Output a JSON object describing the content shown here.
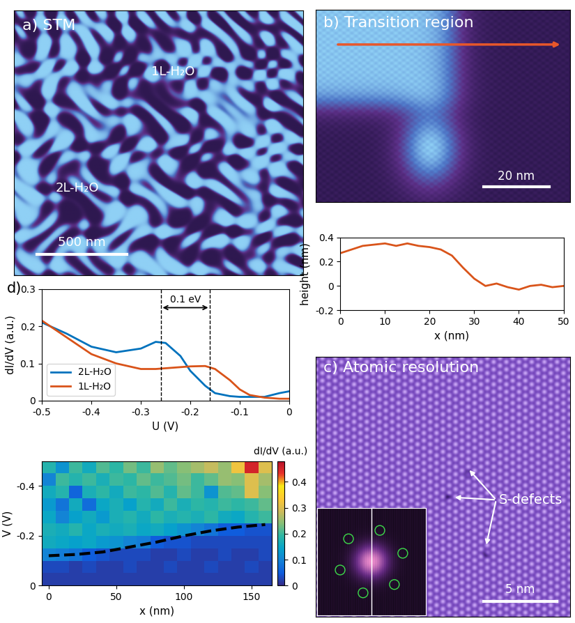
{
  "chart_data": [
    {
      "type": "image",
      "title": "a) STM",
      "labels": [
        "1L-H₂O",
        "2L-H₂O"
      ],
      "scale_bar": "500 nm"
    },
    {
      "type": "image",
      "title": "b) Transition region",
      "scale_bar": "20 nm"
    },
    {
      "type": "line",
      "xlabel": "x (nm)",
      "ylabel": "height (nm)",
      "x": [
        0,
        2.5,
        5,
        7.5,
        10,
        12.5,
        15,
        17.5,
        20,
        22.5,
        25,
        27.5,
        30,
        32.5,
        35,
        37.5,
        40,
        42.5,
        45,
        47.5,
        50
      ],
      "series": [
        {
          "color": "#d9541a",
          "values": [
            0.27,
            0.3,
            0.33,
            0.34,
            0.35,
            0.33,
            0.35,
            0.33,
            0.32,
            0.3,
            0.25,
            0.15,
            0.06,
            0.0,
            0.02,
            -0.01,
            -0.03,
            0.0,
            0.01,
            -0.01,
            0.0
          ]
        }
      ],
      "xlim": [
        0,
        50
      ],
      "xticks": [
        0,
        10,
        20,
        30,
        40,
        50
      ],
      "ylim": [
        -0.2,
        0.4
      ],
      "yticks": [
        -0.2,
        0,
        0.2,
        0.4
      ]
    },
    {
      "type": "image",
      "title": "c) Atomic resolution",
      "labels": [
        "S-defects"
      ],
      "scale_bar": "5 nm"
    },
    {
      "type": "line",
      "title": "d)",
      "xlabel": "U (V)",
      "ylabel": "dI/dV (a.u.)",
      "x": [
        -0.5,
        -0.45,
        -0.4,
        -0.35,
        -0.3,
        -0.27,
        -0.25,
        -0.22,
        -0.2,
        -0.17,
        -0.15,
        -0.12,
        -0.1,
        -0.08,
        -0.05,
        -0.02,
        0
      ],
      "series": [
        {
          "name": "2L-H₂O",
          "color": "#0072bd",
          "values": [
            0.21,
            0.18,
            0.145,
            0.13,
            0.14,
            0.158,
            0.155,
            0.12,
            0.08,
            0.04,
            0.02,
            0.012,
            0.01,
            0.01,
            0.01,
            0.02,
            0.025
          ]
        },
        {
          "name": "1L-H₂O",
          "color": "#d95319",
          "values": [
            0.215,
            0.17,
            0.125,
            0.1,
            0.085,
            0.085,
            0.087,
            0.09,
            0.092,
            0.093,
            0.085,
            0.055,
            0.03,
            0.015,
            0.008,
            0.005,
            0.005
          ]
        }
      ],
      "annotation": {
        "text": "0.1 eV",
        "x": [
          -0.26,
          -0.16
        ],
        "y": 0.25
      },
      "xlim": [
        -0.5,
        0
      ],
      "xticks": [
        -0.5,
        -0.4,
        -0.3,
        -0.2,
        -0.1,
        0
      ],
      "ylim": [
        0,
        0.3
      ],
      "yticks": [
        0,
        0.1,
        0.2,
        0.3
      ],
      "legend": "lower left"
    },
    {
      "type": "heatmap",
      "xlabel": "x (nm)",
      "ylabel": "V (V)",
      "colorbar_label": "dI/dV (a.u.)",
      "x": [
        -5,
        5,
        15,
        25,
        35,
        45,
        55,
        65,
        75,
        85,
        95,
        105,
        115,
        125,
        135,
        145,
        155,
        165
      ],
      "y": [
        0,
        -0.05,
        -0.1,
        -0.15,
        -0.2,
        -0.25,
        -0.3,
        -0.35,
        -0.4,
        -0.45,
        -0.5
      ],
      "cells": [
        [
          0.02,
          0.02,
          0.02,
          0.02,
          0.02,
          0.02,
          0.02,
          0.02,
          0.02,
          0.02,
          0.02,
          0.02,
          0.02,
          0.02,
          0.02,
          0.02,
          0.02
        ],
        [
          0.03,
          0.03,
          0.02,
          0.03,
          0.02,
          0.02,
          0.03,
          0.02,
          0.02,
          0.03,
          0.02,
          0.02,
          0.03,
          0.02,
          0.02,
          0.03,
          0.02
        ],
        [
          0.1,
          0.09,
          0.08,
          0.05,
          0.04,
          0.03,
          0.03,
          0.03,
          0.02,
          0.02,
          0.03,
          0.02,
          0.02,
          0.03,
          0.02,
          0.02,
          0.03
        ],
        [
          0.16,
          0.15,
          0.14,
          0.15,
          0.13,
          0.12,
          0.1,
          0.09,
          0.05,
          0.04,
          0.04,
          0.03,
          0.03,
          0.03,
          0.03,
          0.03,
          0.03
        ],
        [
          0.17,
          0.16,
          0.18,
          0.15,
          0.17,
          0.16,
          0.17,
          0.15,
          0.16,
          0.14,
          0.12,
          0.1,
          0.08,
          0.05,
          0.05,
          0.04,
          0.04
        ],
        [
          0.15,
          0.1,
          0.14,
          0.16,
          0.13,
          0.17,
          0.18,
          0.16,
          0.19,
          0.17,
          0.18,
          0.17,
          0.19,
          0.16,
          0.15,
          0.18,
          0.2
        ],
        [
          0.13,
          0.08,
          0.16,
          0.07,
          0.15,
          0.17,
          0.14,
          0.18,
          0.16,
          0.2,
          0.17,
          0.19,
          0.18,
          0.2,
          0.19,
          0.2,
          0.22
        ],
        [
          0.16,
          0.18,
          0.06,
          0.17,
          0.19,
          0.16,
          0.2,
          0.19,
          0.21,
          0.18,
          0.22,
          0.2,
          0.12,
          0.21,
          0.22,
          0.3,
          0.24
        ],
        [
          0.1,
          0.2,
          0.18,
          0.2,
          0.17,
          0.2,
          0.19,
          0.22,
          0.2,
          0.21,
          0.23,
          0.2,
          0.22,
          0.25,
          0.24,
          0.3,
          0.26
        ],
        [
          0.18,
          0.12,
          0.2,
          0.16,
          0.21,
          0.19,
          0.23,
          0.2,
          0.25,
          0.22,
          0.24,
          0.26,
          0.28,
          0.25,
          0.32,
          0.45,
          0.3
        ]
      ],
      "onset": {
        "x": [
          0,
          20,
          40,
          60,
          80,
          100,
          120,
          140,
          160
        ],
        "values": [
          -0.12,
          -0.125,
          -0.135,
          -0.155,
          -0.175,
          -0.2,
          -0.22,
          -0.235,
          -0.245
        ]
      },
      "clim": [
        0,
        0.48
      ],
      "cticks": [
        0,
        0.1,
        0.2,
        0.3,
        0.4
      ],
      "xlim": [
        -5,
        165
      ],
      "xticks": [
        0,
        50,
        100,
        150
      ],
      "ylim": [
        0,
        -0.5
      ],
      "yticks": [
        0,
        -0.2,
        -0.4
      ]
    }
  ]
}
